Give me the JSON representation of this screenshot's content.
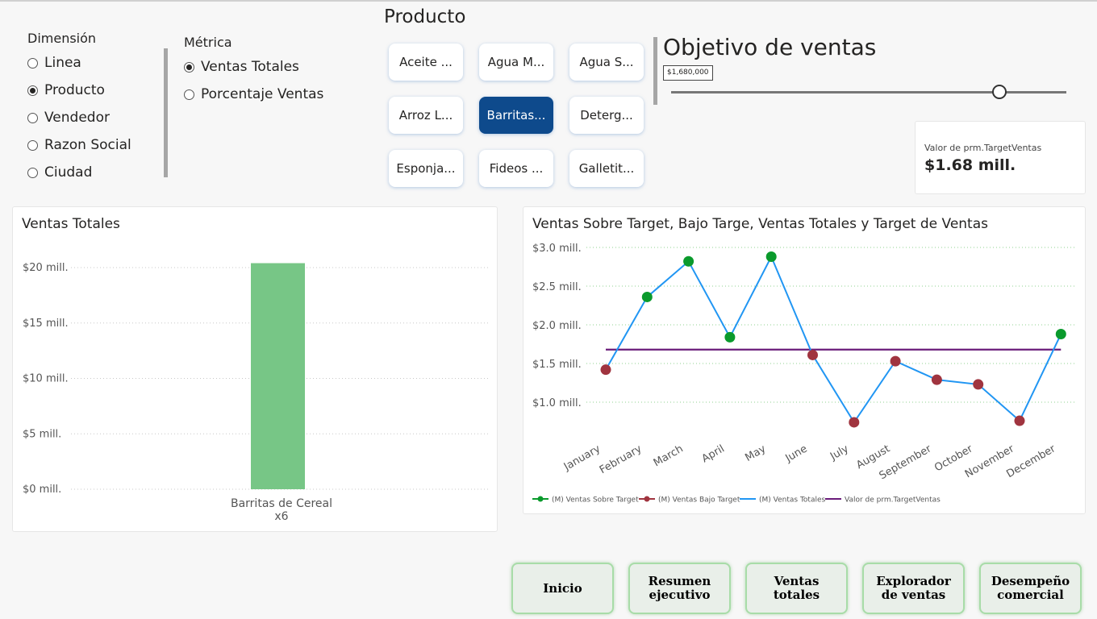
{
  "dimension": {
    "title": "Dimensión",
    "options": [
      {
        "label": "Linea",
        "selected": false
      },
      {
        "label": "Producto",
        "selected": true
      },
      {
        "label": "Vendedor",
        "selected": false
      },
      {
        "label": "Razon Social",
        "selected": false
      },
      {
        "label": "Ciudad",
        "selected": false
      }
    ]
  },
  "metric": {
    "title": "Métrica",
    "options": [
      {
        "label": "Ventas Totales",
        "selected": true
      },
      {
        "label": "Porcentaje Ventas",
        "selected": false
      }
    ]
  },
  "product": {
    "title": "Producto",
    "tiles": [
      {
        "label": "Aceite ...",
        "selected": false
      },
      {
        "label": "Agua M...",
        "selected": false
      },
      {
        "label": "Agua S...",
        "selected": false
      },
      {
        "label": "Arroz L...",
        "selected": false
      },
      {
        "label": "Barritas...",
        "selected": true
      },
      {
        "label": "Deterg...",
        "selected": false
      },
      {
        "label": "Esponja...",
        "selected": false
      },
      {
        "label": "Fideos ...",
        "selected": false
      },
      {
        "label": "Galletit...",
        "selected": false
      }
    ]
  },
  "target": {
    "title": "Objetivo de ventas",
    "value_label": "$1,680,000",
    "slider_fraction": 0.83,
    "card_label": "Valor de prm.TargetVentas",
    "card_value": "$1.68 mill."
  },
  "bar_chart": {
    "title": "Ventas Totales",
    "tick_labels": [
      "$0 mill.",
      "$5 mill.",
      "$10 mill.",
      "$15 mill.",
      "$20 mill."
    ],
    "category_line1": "Barritas de Cereal",
    "category_line2": "x6",
    "color": "#77c686"
  },
  "line_chart": {
    "title": "Ventas Sobre Target, Bajo Targe, Ventas Totales y Target de Ventas",
    "tick_labels": [
      "$1.0 mill.",
      "$1.5 mill.",
      "$2.0 mill.",
      "$2.5 mill.",
      "$3.0 mill."
    ],
    "month_labels": [
      "January",
      "February",
      "March",
      "April",
      "May",
      "June",
      "July",
      "August",
      "September",
      "October",
      "November",
      "December"
    ],
    "legend": [
      "(M) Ventas Sobre Target",
      "(M) Ventas Bajo Target",
      "(M) Ventas Totales",
      "Valor de prm.TargetVentas"
    ],
    "colors": {
      "above": "#0a9a2c",
      "below": "#a0343f",
      "total": "#2196f3",
      "target": "#6a1b7a"
    }
  },
  "chart_data": [
    {
      "type": "bar",
      "title": "Ventas Totales",
      "categories": [
        "Barritas de Cereal x6"
      ],
      "values": [
        20.4
      ],
      "ylim": [
        0,
        20
      ],
      "unit": "mill."
    },
    {
      "type": "line",
      "title": "Ventas Sobre Target, Bajo Targe, Ventas Totales y Target de Ventas",
      "x": [
        "January",
        "February",
        "March",
        "April",
        "May",
        "June",
        "July",
        "August",
        "September",
        "October",
        "November",
        "December"
      ],
      "ylim": [
        1.0,
        3.0
      ],
      "unit": "mill.",
      "series": [
        {
          "name": "(M) Ventas Totales",
          "values": [
            1.42,
            2.36,
            2.82,
            1.84,
            2.88,
            1.61,
            0.74,
            1.53,
            1.29,
            1.23,
            0.76,
            1.88
          ]
        },
        {
          "name": "(M) Ventas Sobre Target",
          "values": [
            null,
            2.36,
            2.82,
            1.84,
            2.88,
            null,
            null,
            null,
            null,
            null,
            null,
            1.88
          ]
        },
        {
          "name": "(M) Ventas Bajo Target",
          "values": [
            1.42,
            null,
            null,
            null,
            null,
            1.61,
            0.74,
            1.53,
            1.29,
            1.23,
            0.76,
            null
          ]
        },
        {
          "name": "Valor de prm.TargetVentas",
          "values": [
            1.68,
            1.68,
            1.68,
            1.68,
            1.68,
            1.68,
            1.68,
            1.68,
            1.68,
            1.68,
            1.68,
            1.68
          ]
        }
      ],
      "legend_position": "bottom-left"
    }
  ],
  "nav": [
    {
      "label1": "Inicio",
      "label2": ""
    },
    {
      "label1": "Resumen",
      "label2": "ejecutivo"
    },
    {
      "label1": "Ventas",
      "label2": "totales"
    },
    {
      "label1": "Explorador",
      "label2": "de ventas"
    },
    {
      "label1": "Desempeño",
      "label2": "comercial"
    }
  ]
}
